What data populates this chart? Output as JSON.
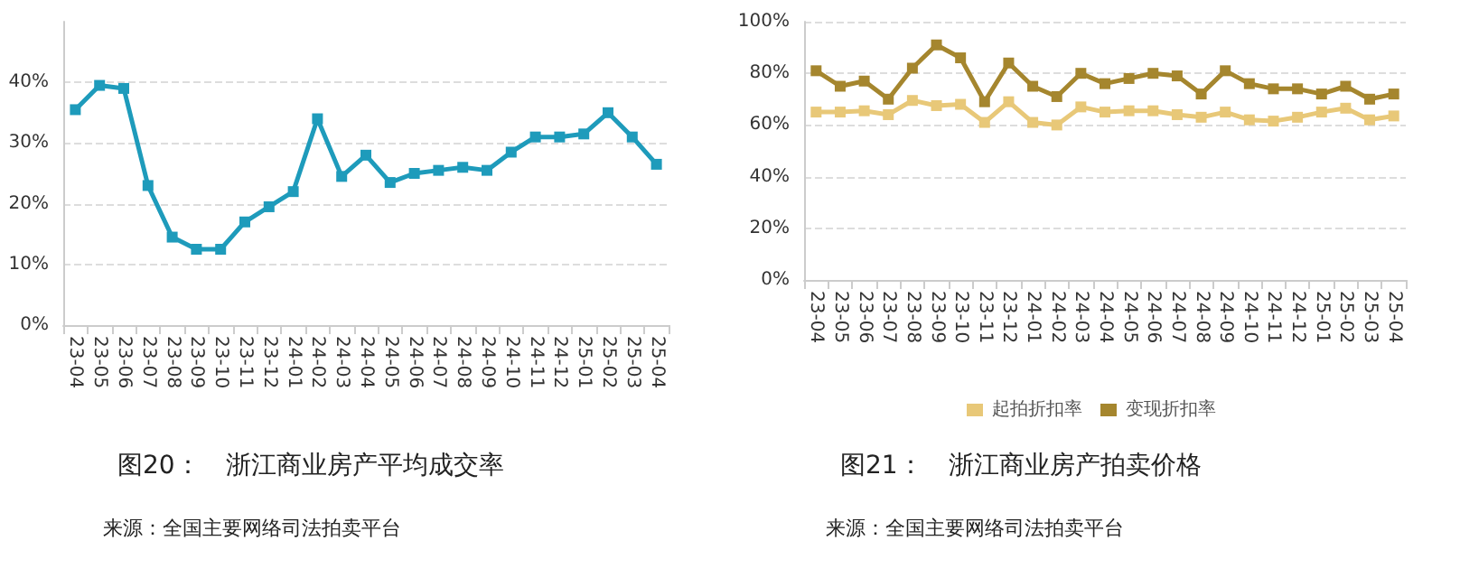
{
  "chart_data": [
    {
      "type": "line",
      "title": "图20：　浙江商业房产平均成交率",
      "annotations": [
        "来源：全国主要网络司法拍卖平台"
      ],
      "categories": [
        "23-04",
        "23-05",
        "23-06",
        "23-07",
        "23-08",
        "23-09",
        "23-10",
        "23-11",
        "23-12",
        "24-01",
        "24-02",
        "24-03",
        "24-04",
        "24-05",
        "24-06",
        "24-07",
        "24-08",
        "24-09",
        "24-10",
        "24-11",
        "24-12",
        "25-01",
        "25-02",
        "25-03",
        "25-04"
      ],
      "series": [
        {
          "color": "#1e9bbb",
          "values": [
            35.5,
            39.5,
            39,
            23,
            14.5,
            12.5,
            12.5,
            17,
            19.5,
            22,
            34,
            24.5,
            28,
            23.5,
            25,
            25.5,
            26,
            25.5,
            28.5,
            31,
            31,
            31.5,
            35,
            31,
            26.5
          ]
        }
      ],
      "ylim": [
        0,
        50
      ],
      "yticks": [
        {
          "value": 0,
          "label": "0%"
        },
        {
          "value": 10,
          "label": "10%"
        },
        {
          "value": 20,
          "label": "20%"
        },
        {
          "value": 30,
          "label": "30%"
        },
        {
          "value": 40,
          "label": "40%"
        }
      ],
      "grid": "y",
      "legend": false,
      "marker": "square",
      "line_style": "solid"
    },
    {
      "type": "line",
      "title": "图21：　浙江商业房产拍卖价格",
      "annotations": [
        "来源：全国主要网络司法拍卖平台"
      ],
      "categories": [
        "23-04",
        "23-05",
        "23-06",
        "23-07",
        "23-08",
        "23-09",
        "23-10",
        "23-11",
        "23-12",
        "24-01",
        "24-02",
        "24-03",
        "24-04",
        "24-05",
        "24-06",
        "24-07",
        "24-08",
        "24-09",
        "24-10",
        "24-11",
        "24-12",
        "25-01",
        "25-02",
        "25-03",
        "25-04"
      ],
      "series": [
        {
          "name": "起拍折扣率",
          "color": "#e8c878",
          "values": [
            65,
            65,
            65.5,
            64,
            69.5,
            67.5,
            68,
            61,
            69,
            61,
            60,
            67,
            65,
            65.5,
            65.5,
            64,
            63,
            65,
            62,
            61.5,
            63,
            65,
            66.5,
            62,
            63.5
          ]
        },
        {
          "name": "变现折扣率",
          "color": "#a5862e",
          "values": [
            81,
            75,
            77,
            70,
            82,
            91,
            86,
            69,
            84,
            75,
            71,
            80,
            76,
            78,
            80,
            79,
            72,
            81,
            76,
            74,
            74,
            72,
            75,
            70,
            72
          ]
        }
      ],
      "ylim": [
        0,
        100
      ],
      "yticks": [
        {
          "value": 0,
          "label": "0%"
        },
        {
          "value": 20,
          "label": "20%"
        },
        {
          "value": 40,
          "label": "40%"
        },
        {
          "value": 60,
          "label": "60%"
        },
        {
          "value": 80,
          "label": "80%"
        },
        {
          "value": 100,
          "label": "100%"
        }
      ],
      "grid": "y",
      "legend": "bottom",
      "marker": "square",
      "line_style": "solid"
    }
  ]
}
